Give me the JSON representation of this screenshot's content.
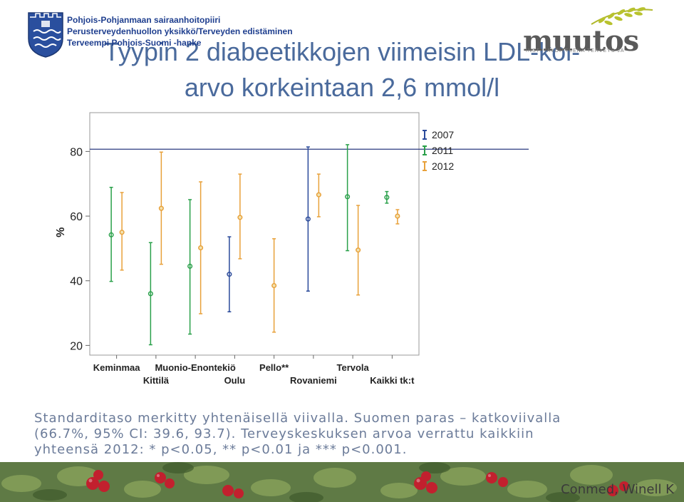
{
  "header": {
    "org_lines": [
      "Pohjois-Pohjanmaan sairaanhoitopiiri",
      "Perusterveydenhuollon yksikkö/Terveyden edistäminen",
      "Terveempi Pohjois-Suomi -hanke"
    ],
    "title_lines": [
      "Tyypin 2 diabeetikkojen viimeisin LDL-kol-",
      "arvo korkeintaan 2,6 mmol/l"
    ],
    "logo_text": "muutos",
    "logo_subtext": "INST. TAVOITTEENA TERVEYS JA"
  },
  "chart_data": {
    "type": "errorbar",
    "ylabel": "%",
    "y_ticks": [
      20,
      40,
      60,
      80
    ],
    "ylim": [
      17,
      92
    ],
    "reference_line": 80.7,
    "legend_position": "top-right",
    "grid": false,
    "series": [
      {
        "name": "2007",
        "color": "#2a4a9a"
      },
      {
        "name": "2011",
        "color": "#2aa04a"
      },
      {
        "name": "2012",
        "color": "#e8a13a"
      }
    ],
    "groups": [
      {
        "label": "Keminmaa",
        "label_row": 1,
        "points": [
          {
            "series": "2011",
            "mean": 54.2,
            "low": 39.8,
            "high": 68.9
          },
          {
            "series": "2012",
            "mean": 55.0,
            "low": 43.3,
            "high": 67.3
          }
        ]
      },
      {
        "label": "Kittilä",
        "label_row": 2,
        "points": [
          {
            "series": "2011",
            "mean": 36.0,
            "low": 20.2,
            "high": 51.8
          },
          {
            "series": "2012",
            "mean": 62.4,
            "low": 45.1,
            "high": 79.8
          }
        ]
      },
      {
        "label": "Muonio-Enontekiö",
        "label_row": 1,
        "points": [
          {
            "series": "2011",
            "mean": 44.5,
            "low": 23.5,
            "high": 65.1
          },
          {
            "series": "2012",
            "mean": 50.2,
            "low": 29.8,
            "high": 70.6
          }
        ]
      },
      {
        "label": "Oulu",
        "label_row": 2,
        "points": [
          {
            "series": "2007",
            "mean": 42.0,
            "low": 30.4,
            "high": 53.6
          },
          {
            "series": "2012",
            "mean": 59.6,
            "low": 46.8,
            "high": 73.0
          }
        ]
      },
      {
        "label": "Pello**",
        "label_row": 1,
        "points": [
          {
            "series": "2012",
            "mean": 38.5,
            "low": 24.1,
            "high": 53.0
          }
        ]
      },
      {
        "label": "Rovaniemi",
        "label_row": 2,
        "points": [
          {
            "series": "2007",
            "mean": 59.1,
            "low": 36.8,
            "high": 81.4
          },
          {
            "series": "2012",
            "mean": 66.6,
            "low": 59.8,
            "high": 73.0
          }
        ]
      },
      {
        "label": "Tervola",
        "label_row": 1,
        "points": [
          {
            "series": "2011",
            "mean": 66.0,
            "low": 49.3,
            "high": 82.1
          },
          {
            "series": "2012",
            "mean": 49.5,
            "low": 35.6,
            "high": 63.3
          }
        ]
      },
      {
        "label": "Kaikki tk:t",
        "label_row": 2,
        "points": [
          {
            "series": "2011",
            "mean": 65.8,
            "low": 64.0,
            "high": 67.6
          },
          {
            "series": "2012",
            "mean": 60.0,
            "low": 57.6,
            "high": 62.0
          }
        ]
      }
    ]
  },
  "note_lines": [
    "Standarditaso merkitty yhtenäisellä viivalla. Suomen paras – katkoviivalla",
    "(66.7%, 95% CI: 39.6, 93.7). Terveyskeskuksen arvoa verrattu kaikkiin",
    "yhteensä 2012: * p<0.05, ** p<0.01 ja *** p<0.001."
  ],
  "footer": {
    "credit": "Conmed, Winell K"
  }
}
